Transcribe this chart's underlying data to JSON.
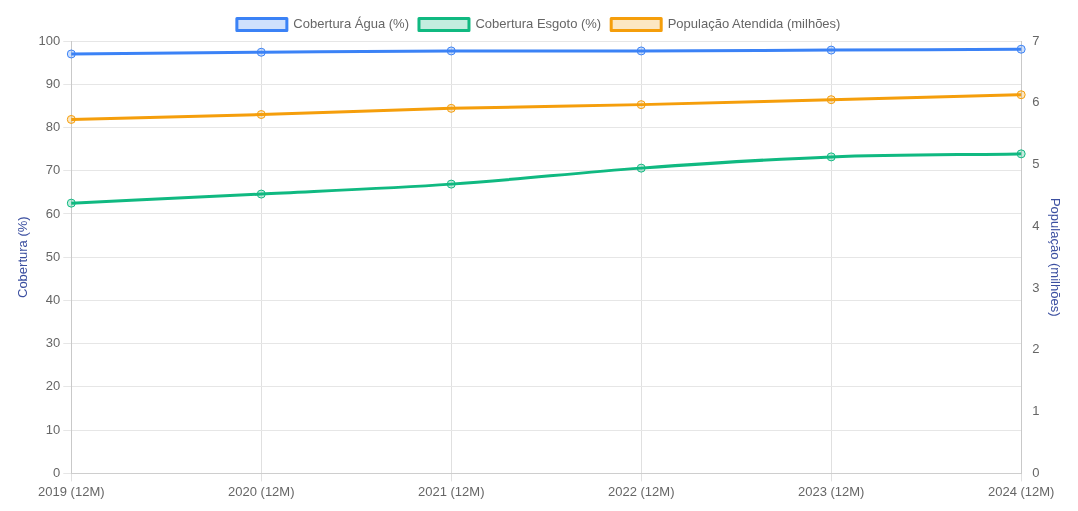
{
  "chart_data": {
    "type": "line",
    "categories": [
      "2019 (12M)",
      "2020 (12M)",
      "2021 (12M)",
      "2022 (12M)",
      "2023 (12M)",
      "2024 (12M)"
    ],
    "series": [
      {
        "name": "Cobertura Água (%)",
        "color": "#3b82f6",
        "values": [
          97.0,
          97.4,
          97.7,
          97.7,
          97.9,
          98.1
        ]
      },
      {
        "name": "Cobertura Esgoto (%)",
        "color": "#10b981",
        "values": [
          62.5,
          64.6,
          66.9,
          70.6,
          73.2,
          73.9
        ]
      },
      {
        "name": "População Atendida (milhões)",
        "color": "#f59e0b",
        "axis": "y2",
        "values": [
          5.73,
          5.81,
          5.91,
          5.97,
          6.05,
          6.13
        ]
      }
    ],
    "ylabel": "Cobertura (%)",
    "y2label": "População (milhões)",
    "ylim": [
      0,
      100
    ],
    "yticks": [
      0,
      10,
      20,
      30,
      40,
      50,
      60,
      70,
      80,
      90,
      100
    ],
    "y2lim": [
      0,
      7
    ],
    "y2ticks": [
      0,
      1,
      2,
      3,
      4,
      5,
      6,
      7
    ],
    "grid": true,
    "legend": "top",
    "marker": "circle",
    "line_style": "solid"
  }
}
